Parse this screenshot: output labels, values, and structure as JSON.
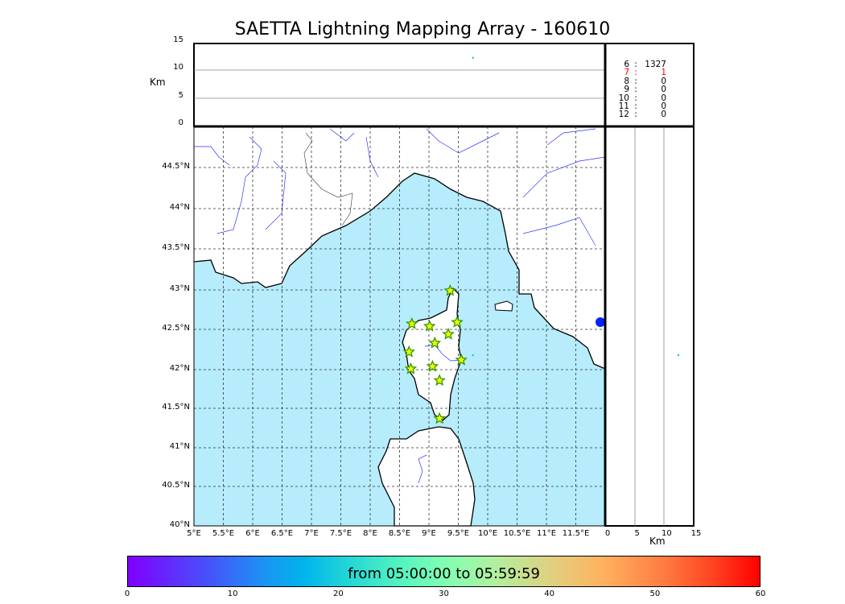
{
  "chart_data": {
    "type": "scatter",
    "title": "SAETTA Lightning Mapping Array - 160610",
    "map": {
      "lon_range": [
        5,
        12
      ],
      "lat_range": [
        40,
        45
      ],
      "lon_ticks": [
        "5°E",
        "5.5°E",
        "6°E",
        "6.5°E",
        "7°E",
        "7.5°E",
        "8°E",
        "8.5°E",
        "9°E",
        "9.5°E",
        "10°E",
        "10.5°E",
        "11°E",
        "11.5°E"
      ],
      "lat_ticks": [
        "40°N",
        "40.5°N",
        "41°N",
        "41.5°N",
        "42°N",
        "42.5°N",
        "43°N",
        "43.5°N",
        "44°N",
        "44.5°N"
      ],
      "grid": true,
      "sea_color": "#b6ecfb",
      "river_color": "#3333ff"
    },
    "altitude_panel": {
      "ylabel": "Km",
      "yticks": [
        "0",
        "5",
        "10",
        "15"
      ],
      "ylim": [
        0,
        15
      ]
    },
    "side_panel": {
      "xlabel": "Km",
      "xticks": [
        "0",
        "5",
        "10",
        "15"
      ],
      "xlim": [
        0,
        15
      ]
    },
    "stations": [
      {
        "lon": 9.36,
        "lat": 42.99
      },
      {
        "lon": 8.71,
        "lat": 42.57
      },
      {
        "lon": 9.01,
        "lat": 42.54
      },
      {
        "lon": 9.48,
        "lat": 42.59
      },
      {
        "lon": 9.33,
        "lat": 42.44
      },
      {
        "lon": 9.1,
        "lat": 42.33
      },
      {
        "lon": 8.66,
        "lat": 42.22
      },
      {
        "lon": 9.55,
        "lat": 42.12
      },
      {
        "lon": 8.69,
        "lat": 42.01
      },
      {
        "lon": 9.06,
        "lat": 42.04
      },
      {
        "lon": 9.18,
        "lat": 41.86
      },
      {
        "lon": 9.18,
        "lat": 41.37
      }
    ],
    "sources": [
      {
        "lon": 9.75,
        "lat": 42.18,
        "alt_km": 12.4,
        "color": "#00c8e6"
      }
    ],
    "station_counts": [
      {
        "n": "6",
        "sep": ":",
        "count": "1327",
        "color": "#000000"
      },
      {
        "n": "7",
        "sep": ":",
        "count": "1",
        "color": "#ff0000"
      },
      {
        "n": "8",
        "sep": ":",
        "count": "0",
        "color": "#000000"
      },
      {
        "n": "9",
        "sep": ":",
        "count": "0",
        "color": "#000000"
      },
      {
        "n": "10",
        "sep": ":",
        "count": "0",
        "color": "#000000"
      },
      {
        "n": "11",
        "sep": ":",
        "count": "0",
        "color": "#000000"
      },
      {
        "n": "12",
        "sep": ":",
        "count": "0",
        "color": "#000000"
      }
    ],
    "colorbar": {
      "label": "from 05:00:00 to 05:59:59",
      "ticks": [
        "0",
        "10",
        "20",
        "30",
        "40",
        "50",
        "60"
      ],
      "range": [
        0,
        60
      ],
      "colormap": "rainbow"
    }
  }
}
